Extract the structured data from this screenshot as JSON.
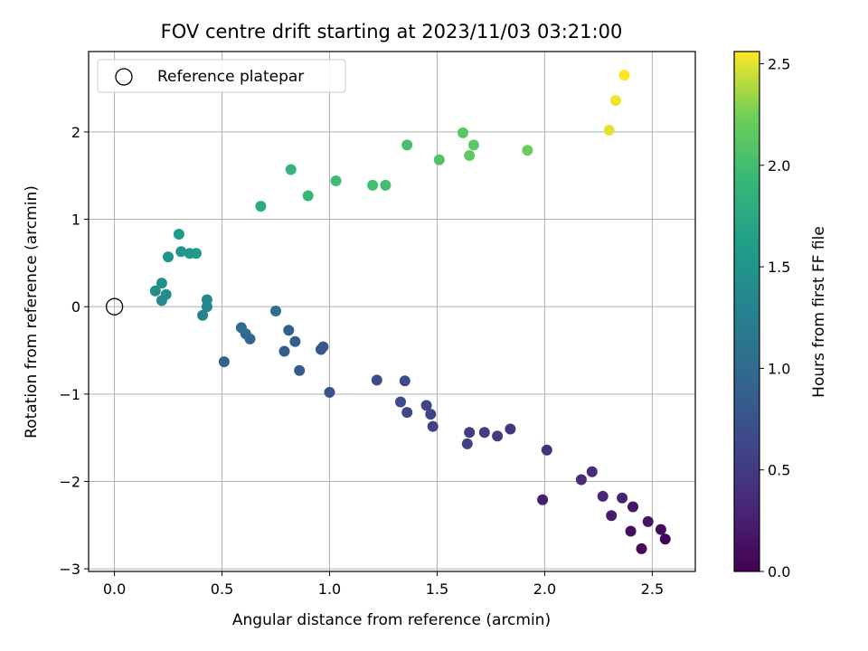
{
  "chart_data": {
    "type": "scatter",
    "title": "FOV centre drift starting at 2023/11/03 03:21:00",
    "xlabel": "Angular distance from reference (arcmin)",
    "ylabel": "Rotation from reference (arcmin)",
    "xlim": [
      -0.12,
      2.7
    ],
    "ylim": [
      -3.03,
      2.92
    ],
    "x_ticks": [
      0.0,
      0.5,
      1.0,
      1.5,
      2.0,
      2.5
    ],
    "x_tick_labels": [
      "0.0",
      "0.5",
      "1.0",
      "1.5",
      "2.0",
      "2.5"
    ],
    "y_ticks": [
      -3,
      -2,
      -1,
      0,
      1,
      2
    ],
    "y_tick_labels": [
      "−3",
      "−2",
      "−1",
      "0",
      "1",
      "2"
    ],
    "grid": true,
    "legend": {
      "position": "top-left",
      "entries": [
        "Reference platepar"
      ]
    },
    "reference_point": {
      "x": 0.0,
      "y": 0.0,
      "label": "Reference platepar"
    },
    "colorbar": {
      "label": "Hours from first FF file",
      "colormap": "viridis",
      "range": [
        0.0,
        2.56
      ],
      "ticks": [
        0.0,
        0.5,
        1.0,
        1.5,
        2.0,
        2.5
      ],
      "tick_labels": [
        "0.0",
        "0.5",
        "1.0",
        "1.5",
        "2.0",
        "2.5"
      ]
    },
    "points": [
      {
        "x": 2.56,
        "y": -2.66,
        "c": 0.02
      },
      {
        "x": 2.45,
        "y": -2.77,
        "c": 0.05
      },
      {
        "x": 2.54,
        "y": -2.55,
        "c": 0.08
      },
      {
        "x": 2.4,
        "y": -2.57,
        "c": 0.11
      },
      {
        "x": 2.48,
        "y": -2.46,
        "c": 0.15
      },
      {
        "x": 2.41,
        "y": -2.29,
        "c": 0.18
      },
      {
        "x": 2.31,
        "y": -2.39,
        "c": 0.22
      },
      {
        "x": 1.99,
        "y": -2.21,
        "c": 0.25
      },
      {
        "x": 2.36,
        "y": -2.19,
        "c": 0.28
      },
      {
        "x": 2.27,
        "y": -2.17,
        "c": 0.31
      },
      {
        "x": 2.17,
        "y": -1.98,
        "c": 0.34
      },
      {
        "x": 2.22,
        "y": -1.89,
        "c": 0.36
      },
      {
        "x": 2.01,
        "y": -1.64,
        "c": 0.42
      },
      {
        "x": 1.84,
        "y": -1.4,
        "c": 0.46
      },
      {
        "x": 1.78,
        "y": -1.48,
        "c": 0.49
      },
      {
        "x": 1.72,
        "y": -1.44,
        "c": 0.51
      },
      {
        "x": 1.65,
        "y": -1.44,
        "c": 0.53
      },
      {
        "x": 1.64,
        "y": -1.57,
        "c": 0.55
      },
      {
        "x": 1.48,
        "y": -1.37,
        "c": 0.57
      },
      {
        "x": 1.47,
        "y": -1.23,
        "c": 0.59
      },
      {
        "x": 1.45,
        "y": -1.13,
        "c": 0.61
      },
      {
        "x": 1.36,
        "y": -1.21,
        "c": 0.63
      },
      {
        "x": 1.33,
        "y": -1.09,
        "c": 0.65
      },
      {
        "x": 1.35,
        "y": -0.85,
        "c": 0.66
      },
      {
        "x": 1.22,
        "y": -0.84,
        "c": 0.68
      },
      {
        "x": 1.0,
        "y": -0.98,
        "c": 0.72
      },
      {
        "x": 0.96,
        "y": -0.49,
        "c": 0.76
      },
      {
        "x": 0.97,
        "y": -0.46,
        "c": 0.79
      },
      {
        "x": 0.86,
        "y": -0.73,
        "c": 0.82
      },
      {
        "x": 0.79,
        "y": -0.51,
        "c": 0.84
      },
      {
        "x": 0.84,
        "y": -0.4,
        "c": 0.86
      },
      {
        "x": 0.81,
        "y": -0.27,
        "c": 0.88
      },
      {
        "x": 0.51,
        "y": -0.63,
        "c": 0.91
      },
      {
        "x": 0.63,
        "y": -0.37,
        "c": 0.95
      },
      {
        "x": 0.61,
        "y": -0.31,
        "c": 0.98
      },
      {
        "x": 0.59,
        "y": -0.24,
        "c": 1.01
      },
      {
        "x": 0.75,
        "y": -0.05,
        "c": 1.05
      },
      {
        "x": 0.41,
        "y": -0.1,
        "c": 1.3
      },
      {
        "x": 0.43,
        "y": 0.0,
        "c": 1.32
      },
      {
        "x": 0.43,
        "y": 0.08,
        "c": 1.35
      },
      {
        "x": 0.22,
        "y": 0.07,
        "c": 1.37
      },
      {
        "x": 0.24,
        "y": 0.14,
        "c": 1.4
      },
      {
        "x": 0.19,
        "y": 0.18,
        "c": 1.42
      },
      {
        "x": 0.22,
        "y": 0.27,
        "c": 1.45
      },
      {
        "x": 0.25,
        "y": 0.57,
        "c": 1.5
      },
      {
        "x": 0.31,
        "y": 0.63,
        "c": 1.52
      },
      {
        "x": 0.35,
        "y": 0.61,
        "c": 1.54
      },
      {
        "x": 0.38,
        "y": 0.61,
        "c": 1.56
      },
      {
        "x": 0.3,
        "y": 0.83,
        "c": 1.58
      },
      {
        "x": 0.68,
        "y": 1.15,
        "c": 1.75
      },
      {
        "x": 0.82,
        "y": 1.57,
        "c": 1.88
      },
      {
        "x": 0.9,
        "y": 1.27,
        "c": 1.92
      },
      {
        "x": 1.03,
        "y": 1.44,
        "c": 1.98
      },
      {
        "x": 1.2,
        "y": 1.39,
        "c": 2.0
      },
      {
        "x": 1.26,
        "y": 1.39,
        "c": 2.01
      },
      {
        "x": 1.36,
        "y": 1.85,
        "c": 2.03
      },
      {
        "x": 1.51,
        "y": 1.68,
        "c": 2.06
      },
      {
        "x": 1.62,
        "y": 1.99,
        "c": 2.13
      },
      {
        "x": 1.67,
        "y": 1.85,
        "c": 2.14
      },
      {
        "x": 1.65,
        "y": 1.73,
        "c": 2.16
      },
      {
        "x": 1.92,
        "y": 1.79,
        "c": 2.22
      },
      {
        "x": 2.3,
        "y": 2.02,
        "c": 2.5
      },
      {
        "x": 2.33,
        "y": 2.36,
        "c": 2.53
      },
      {
        "x": 2.37,
        "y": 2.65,
        "c": 2.56
      }
    ]
  }
}
